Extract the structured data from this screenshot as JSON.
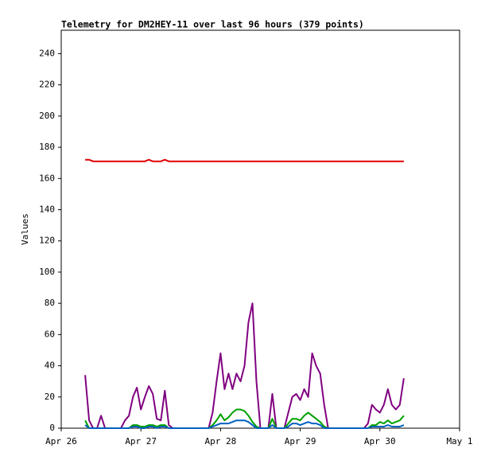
{
  "chart_data": {
    "type": "line",
    "title": "Telemetry for DM2HEY-11 over last 96 hours (379 points)",
    "ylabel": "Values",
    "x": [
      0.3,
      0.35,
      0.4,
      0.45,
      0.5,
      0.55,
      0.6,
      0.65,
      0.7,
      0.75,
      0.8,
      0.85,
      0.9,
      0.95,
      1.0,
      1.05,
      1.1,
      1.15,
      1.2,
      1.25,
      1.3,
      1.35,
      1.4,
      1.45,
      1.5,
      1.55,
      1.6,
      1.65,
      1.7,
      1.75,
      1.8,
      1.85,
      1.9,
      1.95,
      2.0,
      2.05,
      2.1,
      2.15,
      2.2,
      2.25,
      2.3,
      2.35,
      2.4,
      2.45,
      2.5,
      2.55,
      2.6,
      2.65,
      2.7,
      2.75,
      2.8,
      2.85,
      2.9,
      2.95,
      3.0,
      3.05,
      3.1,
      3.15,
      3.2,
      3.25,
      3.3,
      3.35,
      3.4,
      3.45,
      3.5,
      3.55,
      3.6,
      3.65,
      3.7,
      3.75,
      3.8,
      3.85,
      3.9,
      3.95,
      4.0,
      4.05,
      4.1,
      4.15,
      4.2,
      4.25,
      4.3
    ],
    "series": [
      {
        "color": "#e00000",
        "values": [
          172,
          172,
          171,
          171,
          171,
          171,
          171,
          171,
          171,
          171,
          171,
          171,
          171,
          171,
          171,
          171,
          172,
          171,
          171,
          171,
          172,
          171,
          171,
          171,
          171,
          171,
          171,
          171,
          171,
          171,
          171,
          171,
          171,
          171,
          171,
          171,
          171,
          171,
          171,
          171,
          171,
          171,
          171,
          171,
          171,
          171,
          171,
          171,
          171,
          171,
          171,
          171,
          171,
          171,
          171,
          171,
          171,
          171,
          171,
          171,
          171,
          171,
          171,
          171,
          171,
          171,
          171,
          171,
          171,
          171,
          171,
          171,
          171,
          171,
          171,
          171,
          171,
          171,
          171,
          171,
          171
        ]
      },
      {
        "color": "#800080",
        "values": [
          34,
          5,
          0,
          0,
          8,
          0,
          0,
          0,
          0,
          0,
          5,
          8,
          20,
          26,
          12,
          20,
          27,
          22,
          6,
          5,
          24,
          2,
          0,
          0,
          0,
          0,
          0,
          0,
          0,
          0,
          0,
          0,
          10,
          30,
          48,
          25,
          35,
          25,
          35,
          30,
          40,
          68,
          80,
          30,
          0,
          0,
          0,
          22,
          0,
          0,
          0,
          10,
          20,
          22,
          18,
          25,
          20,
          48,
          40,
          35,
          15,
          0,
          0,
          0,
          0,
          0,
          0,
          0,
          0,
          0,
          0,
          3,
          15,
          12,
          10,
          15,
          25,
          15,
          12,
          15,
          32
        ]
      },
      {
        "color": "#00a000",
        "values": [
          5,
          0,
          0,
          0,
          0,
          0,
          0,
          0,
          0,
          0,
          0,
          0,
          2,
          2,
          1,
          1,
          2,
          2,
          1,
          2,
          2,
          0,
          0,
          0,
          0,
          0,
          0,
          0,
          0,
          0,
          0,
          0,
          2,
          5,
          9,
          5,
          7,
          10,
          12,
          12,
          11,
          8,
          4,
          1,
          0,
          0,
          0,
          6,
          0,
          0,
          0,
          3,
          6,
          6,
          5,
          8,
          10,
          8,
          6,
          4,
          1,
          0,
          0,
          0,
          0,
          0,
          0,
          0,
          0,
          0,
          0,
          0,
          2,
          2,
          4,
          3,
          5,
          3,
          4,
          5,
          8
        ]
      },
      {
        "color": "#0060c0",
        "values": [
          2,
          0,
          0,
          0,
          0,
          0,
          0,
          0,
          0,
          0,
          0,
          0,
          1,
          1,
          0,
          0,
          1,
          1,
          0,
          1,
          1,
          0,
          0,
          0,
          0,
          0,
          0,
          0,
          0,
          0,
          0,
          0,
          1,
          2,
          3,
          3,
          3,
          4,
          5,
          5,
          5,
          4,
          2,
          0,
          0,
          0,
          0,
          2,
          0,
          0,
          0,
          1,
          3,
          3,
          2,
          3,
          4,
          3,
          3,
          2,
          0,
          0,
          0,
          0,
          0,
          0,
          0,
          0,
          0,
          0,
          0,
          0,
          1,
          1,
          1,
          1,
          2,
          1,
          1,
          1,
          2
        ]
      }
    ],
    "xlim": [
      0,
      5
    ],
    "xticks": [
      {
        "value": 0,
        "label": "Apr 26"
      },
      {
        "value": 1,
        "label": "Apr 27"
      },
      {
        "value": 2,
        "label": "Apr 28"
      },
      {
        "value": 3,
        "label": "Apr 29"
      },
      {
        "value": 4,
        "label": "Apr 30"
      },
      {
        "value": 5,
        "label": "May 1"
      }
    ],
    "ylim": [
      0,
      255
    ],
    "yticks": [
      0,
      20,
      40,
      60,
      80,
      100,
      120,
      140,
      160,
      180,
      200,
      220,
      240
    ],
    "grid": false
  }
}
